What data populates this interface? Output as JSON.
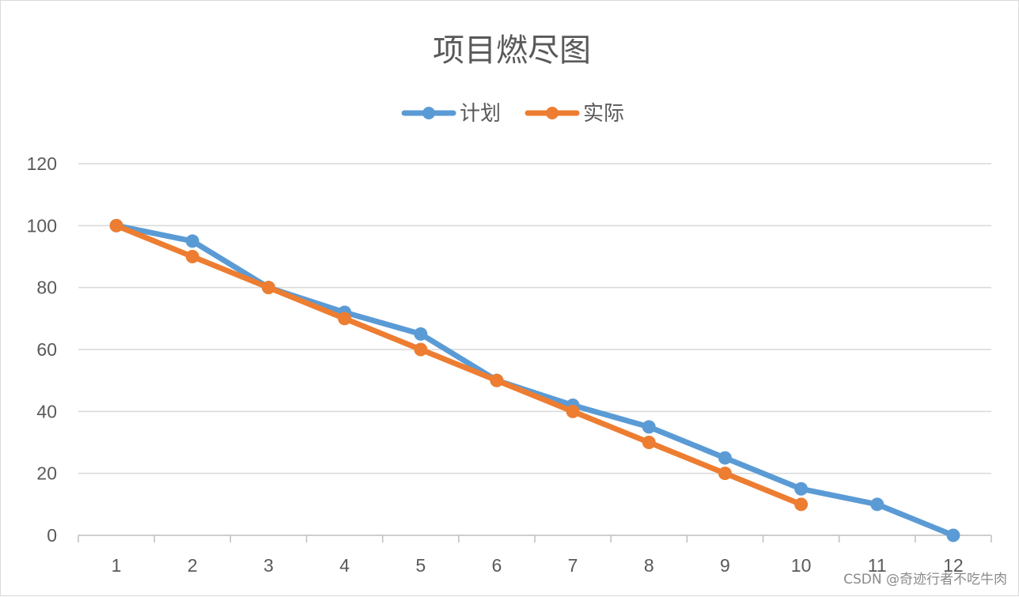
{
  "chart_data": {
    "type": "line",
    "title": "项目燃尽图",
    "xlabel": "",
    "ylabel": "",
    "categories": [
      "1",
      "2",
      "3",
      "4",
      "5",
      "6",
      "7",
      "8",
      "9",
      "10",
      "11",
      "12"
    ],
    "ylim": [
      0,
      120
    ],
    "yticks": [
      "0",
      "20",
      "40",
      "60",
      "80",
      "100",
      "120"
    ],
    "grid": true,
    "legend_position": "top",
    "series": [
      {
        "name": "计划",
        "color": "#5B9BD5",
        "values": [
          100,
          95,
          80,
          72,
          65,
          50,
          42,
          35,
          25,
          15,
          10,
          0
        ]
      },
      {
        "name": "实际",
        "color": "#ED7D31",
        "values": [
          100,
          90,
          80,
          70,
          60,
          50,
          40,
          30,
          20,
          10,
          null,
          null
        ]
      }
    ]
  },
  "watermark": "CSDN @奇迹行者不吃牛肉"
}
